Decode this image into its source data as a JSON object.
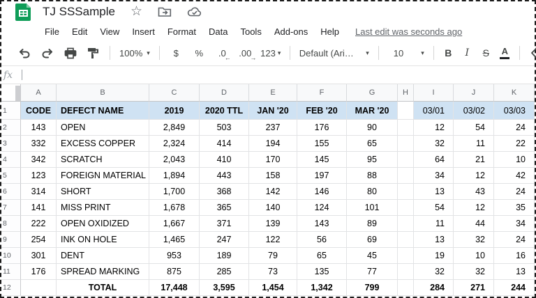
{
  "titlebar": {
    "title": "TJ SSSample",
    "star_icon": "☆"
  },
  "menu": {
    "items": [
      "File",
      "Edit",
      "View",
      "Insert",
      "Format",
      "Data",
      "Tools",
      "Add-ons",
      "Help"
    ],
    "status": "Last edit was seconds ago"
  },
  "toolbar": {
    "zoom": "100%",
    "currency": "$",
    "percent": "%",
    "decrease_decimal": ".0",
    "decrease_arrow": "←",
    "increase_decimal": ".00",
    "increase_arrow": "→",
    "more_formats": "123",
    "font_name": "Default (Ari…",
    "font_size": "10",
    "bold": "B",
    "italic": "I",
    "strikethrough": "S",
    "text_color": "A",
    "caret": "▾"
  },
  "formula_bar": {
    "label": "fx",
    "value": ""
  },
  "sheet": {
    "column_letters": [
      "A",
      "B",
      "C",
      "D",
      "E",
      "F",
      "G",
      "H",
      "I",
      "J",
      "K"
    ],
    "header_row": {
      "row_num": "1",
      "cells": [
        "CODE",
        "DEFECT NAME",
        "2019",
        "2020 TTL",
        "JAN '20",
        "FEB '20",
        "MAR '20",
        "",
        "03/01",
        "03/02",
        "03/03"
      ]
    },
    "data_rows": [
      {
        "row_num": "2",
        "cells": [
          "143",
          "OPEN",
          "2,849",
          "503",
          "237",
          "176",
          "90",
          "",
          "12",
          "54",
          "24"
        ]
      },
      {
        "row_num": "3",
        "cells": [
          "332",
          "EXCESS COPPER",
          "2,324",
          "414",
          "194",
          "155",
          "65",
          "",
          "32",
          "11",
          "22"
        ]
      },
      {
        "row_num": "4",
        "cells": [
          "342",
          "SCRATCH",
          "2,043",
          "410",
          "170",
          "145",
          "95",
          "",
          "64",
          "21",
          "10"
        ]
      },
      {
        "row_num": "5",
        "cells": [
          "123",
          "FOREIGN MATERIAL",
          "1,894",
          "443",
          "158",
          "197",
          "88",
          "",
          "34",
          "12",
          "42"
        ]
      },
      {
        "row_num": "6",
        "cells": [
          "314",
          "SHORT",
          "1,700",
          "368",
          "142",
          "146",
          "80",
          "",
          "13",
          "43",
          "24"
        ]
      },
      {
        "row_num": "7",
        "cells": [
          "141",
          "MISS PRINT",
          "1,678",
          "365",
          "140",
          "124",
          "101",
          "",
          "54",
          "12",
          "35"
        ]
      },
      {
        "row_num": "8",
        "cells": [
          "222",
          "OPEN OXIDIZED",
          "1,667",
          "371",
          "139",
          "143",
          "89",
          "",
          "11",
          "44",
          "34"
        ]
      },
      {
        "row_num": "9",
        "cells": [
          "254",
          "INK ON HOLE",
          "1,465",
          "247",
          "122",
          "56",
          "69",
          "",
          "13",
          "32",
          "24"
        ]
      },
      {
        "row_num": "10",
        "cells": [
          "301",
          "DENT",
          "953",
          "189",
          "79",
          "65",
          "45",
          "",
          "19",
          "10",
          "16"
        ]
      },
      {
        "row_num": "11",
        "cells": [
          "176",
          "SPREAD MARKING",
          "875",
          "285",
          "73",
          "135",
          "77",
          "",
          "32",
          "32",
          "13"
        ]
      }
    ],
    "total_row": {
      "row_num": "12",
      "cells": [
        "",
        "TOTAL",
        "17,448",
        "3,595",
        "1,454",
        "1,342",
        "799",
        "",
        "284",
        "271",
        "244"
      ]
    }
  },
  "colors": {
    "logo_green": "#0f9d58",
    "logo_fold_green": "#87ceac",
    "header_fill": "#cfe2f3",
    "grid_line": "#e2e3e5",
    "icon_gray": "#5f6368"
  }
}
